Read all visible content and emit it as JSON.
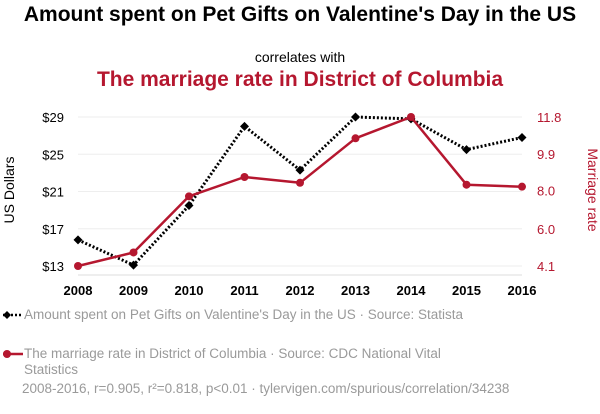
{
  "title": "Amount spent on Pet Gifts on Valentine's Day in the US",
  "subtitle": "correlates with",
  "title2": "The marriage rate in District of Columbia",
  "chart_data": {
    "type": "line",
    "x": [
      2008,
      2009,
      2010,
      2011,
      2012,
      2013,
      2014,
      2015,
      2016
    ],
    "xticks": [
      "2008",
      "2009",
      "2010",
      "2011",
      "2012",
      "2013",
      "2014",
      "2015",
      "2016"
    ],
    "series": [
      {
        "name": "Amount spent on Pet Gifts on Valentine's Day in the US",
        "axis": "left",
        "values": [
          15.8,
          13.1,
          19.5,
          28.0,
          23.3,
          29.0,
          28.8,
          25.5,
          26.8
        ],
        "color": "#000000",
        "style": "dotted",
        "marker": "diamond"
      },
      {
        "name": "The marriage rate in District of Columbia",
        "axis": "right",
        "values": [
          4.1,
          4.8,
          7.7,
          8.7,
          8.4,
          10.7,
          11.8,
          8.3,
          8.2
        ],
        "color": "#b5172f",
        "style": "solid",
        "marker": "circle"
      }
    ],
    "ylabel_left": "US Dollars",
    "ylabel_right": "Marriage rate",
    "ylim_left": [
      13,
      29
    ],
    "yticks_left": [
      "$13",
      "$17",
      "$21",
      "$25",
      "$29"
    ],
    "yticks_left_values": [
      13,
      17,
      21,
      25,
      29
    ],
    "ylim_right": [
      4.1,
      11.8
    ],
    "yticks_right": [
      "4.1",
      "6.0",
      "8.0",
      "9.9",
      "11.8"
    ],
    "yticks_right_values": [
      4.1,
      6.0,
      8.0,
      9.9,
      11.8
    ],
    "grid": true
  },
  "legend": [
    {
      "label": "Amount spent on Pet Gifts on Valentine's Day in the US · Source: Statista",
      "color": "#000000"
    },
    {
      "label": "The marriage rate in District of Columbia · Source: CDC National Vital Statistics",
      "color": "#b5172f"
    }
  ],
  "footer": "2008-2016, r=0.905, r²=0.818, p<0.01 · tylervigen.com/spurious/correlation/34238"
}
